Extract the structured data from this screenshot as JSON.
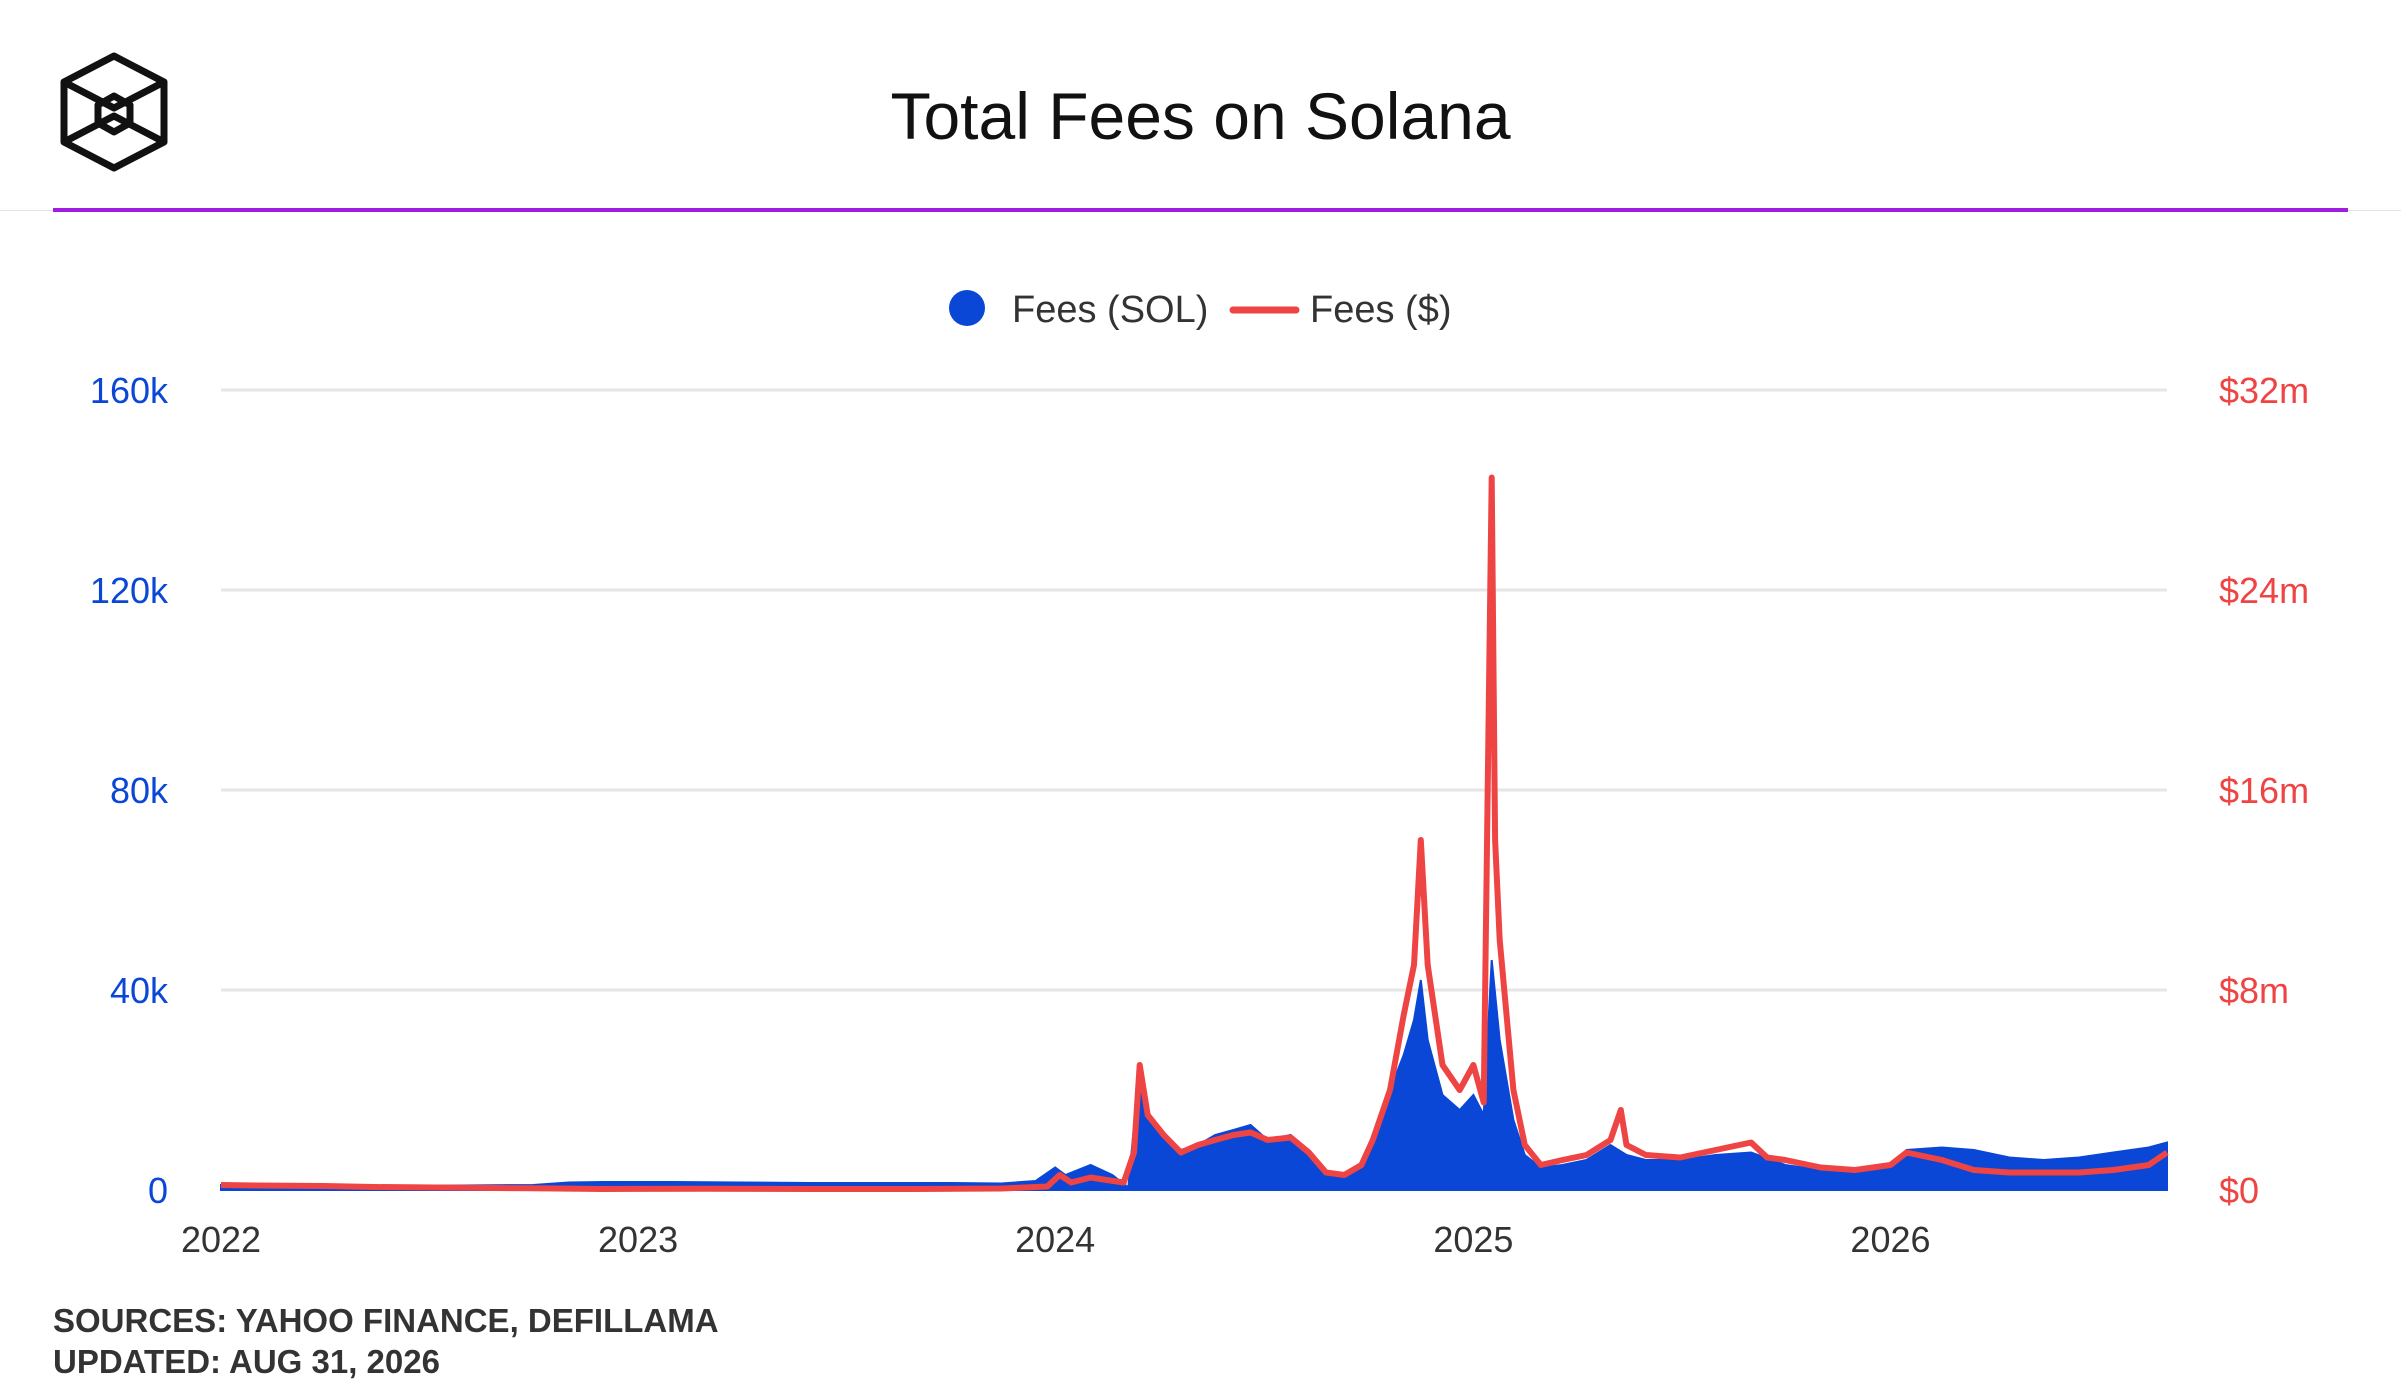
{
  "header": {
    "title": "Total Fees on Solana",
    "logo": "isometric-cube-logo",
    "divider_color": "#a01ee0"
  },
  "footer": {
    "sources": "SOURCES: YAHOO FINANCE, DEFILLAMA",
    "updated": "UPDATED: AUG 31, 2026"
  },
  "chart_data": {
    "type": "area",
    "title": "Total Fees on Solana",
    "x_ticks": [
      "2022",
      "2023",
      "2024",
      "2025",
      "2026"
    ],
    "x_range": [
      "2022-01-01",
      "2026-08-31"
    ],
    "grid": true,
    "legend_position": "top-center",
    "y_left": {
      "ticks": [
        "0",
        "40k",
        "80k",
        "120k",
        "160k"
      ],
      "range": [
        0,
        160000
      ],
      "color": "#0a47d6"
    },
    "y_right": {
      "ticks": [
        "$0",
        "$8m",
        "$16m",
        "$24m",
        "$32m"
      ],
      "range": [
        0,
        32000000
      ],
      "color": "#ef4444"
    },
    "series": [
      {
        "name": "Fees (SOL)",
        "mark": "area",
        "axis": "left",
        "color": "#0a47d6",
        "points": [
          [
            "2022-01-01",
            1000
          ],
          [
            "2022-02-01",
            1000
          ],
          [
            "2022-04-01",
            900
          ],
          [
            "2022-06-01",
            800
          ],
          [
            "2022-08-01",
            900
          ],
          [
            "2022-10-01",
            1000
          ],
          [
            "2022-11-01",
            1500
          ],
          [
            "2022-12-01",
            1600
          ],
          [
            "2023-02-01",
            1600
          ],
          [
            "2023-04-01",
            1500
          ],
          [
            "2023-06-01",
            1400
          ],
          [
            "2023-08-01",
            1400
          ],
          [
            "2023-10-01",
            1400
          ],
          [
            "2023-11-15",
            1300
          ],
          [
            "2023-12-15",
            1800
          ],
          [
            "2024-01-01",
            4500
          ],
          [
            "2024-01-10",
            3000
          ],
          [
            "2024-02-01",
            5000
          ],
          [
            "2024-02-20",
            3000
          ],
          [
            "2024-03-05",
            500
          ],
          [
            "2024-03-15",
            25000
          ],
          [
            "2024-03-22",
            14000
          ],
          [
            "2024-04-05",
            11000
          ],
          [
            "2024-04-20",
            8000
          ],
          [
            "2024-05-05",
            9000
          ],
          [
            "2024-05-20",
            11000
          ],
          [
            "2024-06-05",
            12000
          ],
          [
            "2024-06-20",
            13000
          ],
          [
            "2024-07-05",
            10000
          ],
          [
            "2024-07-25",
            11000
          ],
          [
            "2024-08-10",
            8000
          ],
          [
            "2024-08-25",
            3500
          ],
          [
            "2024-09-10",
            3000
          ],
          [
            "2024-09-25",
            5000
          ],
          [
            "2024-10-05",
            11000
          ],
          [
            "2024-10-20",
            20000
          ],
          [
            "2024-11-01",
            27000
          ],
          [
            "2024-11-10",
            34000
          ],
          [
            "2024-11-16",
            42000
          ],
          [
            "2024-11-22",
            30000
          ],
          [
            "2024-12-05",
            19000
          ],
          [
            "2024-12-20",
            16000
          ],
          [
            "2025-01-01",
            19000
          ],
          [
            "2025-01-10",
            15000
          ],
          [
            "2025-01-17",
            46000
          ],
          [
            "2025-01-24",
            30000
          ],
          [
            "2025-02-05",
            14000
          ],
          [
            "2025-02-15",
            7000
          ],
          [
            "2025-03-01",
            4500
          ],
          [
            "2025-03-20",
            5000
          ],
          [
            "2025-04-10",
            6000
          ],
          [
            "2025-05-01",
            9000
          ],
          [
            "2025-05-15",
            7000
          ],
          [
            "2025-06-01",
            6000
          ],
          [
            "2025-07-01",
            6000
          ],
          [
            "2025-08-01",
            7000
          ],
          [
            "2025-09-01",
            7500
          ],
          [
            "2025-10-01",
            5000
          ],
          [
            "2025-11-01",
            4000
          ],
          [
            "2025-12-01",
            4000
          ],
          [
            "2026-01-01",
            5000
          ],
          [
            "2026-01-15",
            8000
          ],
          [
            "2026-02-15",
            8500
          ],
          [
            "2026-03-15",
            8000
          ],
          [
            "2026-04-15",
            6500
          ],
          [
            "2026-05-15",
            6000
          ],
          [
            "2026-06-15",
            6500
          ],
          [
            "2026-07-15",
            7500
          ],
          [
            "2026-08-15",
            8500
          ],
          [
            "2026-08-31",
            9500
          ]
        ]
      },
      {
        "name": "Fees ($)",
        "mark": "line",
        "axis": "right",
        "color": "#ef4444",
        "points": [
          [
            "2022-01-01",
            200000
          ],
          [
            "2022-02-01",
            180000
          ],
          [
            "2022-04-01",
            160000
          ],
          [
            "2022-05-15",
            120000
          ],
          [
            "2022-08-01",
            90000
          ],
          [
            "2022-10-01",
            70000
          ],
          [
            "2022-12-01",
            40000
          ],
          [
            "2023-03-01",
            50000
          ],
          [
            "2023-06-01",
            40000
          ],
          [
            "2023-09-01",
            40000
          ],
          [
            "2023-11-15",
            60000
          ],
          [
            "2023-12-25",
            140000
          ],
          [
            "2024-01-05",
            600000
          ],
          [
            "2024-01-15",
            300000
          ],
          [
            "2024-02-01",
            500000
          ],
          [
            "2024-02-15",
            400000
          ],
          [
            "2024-03-01",
            300000
          ],
          [
            "2024-03-10",
            1500000
          ],
          [
            "2024-03-15",
            5000000
          ],
          [
            "2024-03-22",
            3000000
          ],
          [
            "2024-04-05",
            2200000
          ],
          [
            "2024-04-20",
            1500000
          ],
          [
            "2024-05-05",
            1800000
          ],
          [
            "2024-05-20",
            2000000
          ],
          [
            "2024-06-05",
            2200000
          ],
          [
            "2024-06-20",
            2300000
          ],
          [
            "2024-07-05",
            2000000
          ],
          [
            "2024-07-25",
            2100000
          ],
          [
            "2024-08-10",
            1500000
          ],
          [
            "2024-08-25",
            700000
          ],
          [
            "2024-09-10",
            600000
          ],
          [
            "2024-09-25",
            1000000
          ],
          [
            "2024-10-05",
            2000000
          ],
          [
            "2024-10-20",
            4000000
          ],
          [
            "2024-11-01",
            7000000
          ],
          [
            "2024-11-10",
            9000000
          ],
          [
            "2024-11-16",
            14000000
          ],
          [
            "2024-11-22",
            9000000
          ],
          [
            "2024-12-05",
            5000000
          ],
          [
            "2024-12-20",
            4000000
          ],
          [
            "2025-01-01",
            5000000
          ],
          [
            "2025-01-10",
            3500000
          ],
          [
            "2025-01-17",
            28500000
          ],
          [
            "2025-01-20",
            14000000
          ],
          [
            "2025-01-24",
            10000000
          ],
          [
            "2025-02-05",
            4000000
          ],
          [
            "2025-02-15",
            1800000
          ],
          [
            "2025-03-01",
            1000000
          ],
          [
            "2025-03-20",
            1200000
          ],
          [
            "2025-04-10",
            1400000
          ],
          [
            "2025-05-01",
            2000000
          ],
          [
            "2025-05-10",
            3200000
          ],
          [
            "2025-05-15",
            1800000
          ],
          [
            "2025-06-01",
            1400000
          ],
          [
            "2025-07-01",
            1300000
          ],
          [
            "2025-08-01",
            1600000
          ],
          [
            "2025-09-01",
            1900000
          ],
          [
            "2025-09-15",
            1300000
          ],
          [
            "2025-10-01",
            1200000
          ],
          [
            "2025-11-01",
            900000
          ],
          [
            "2025-12-01",
            800000
          ],
          [
            "2026-01-01",
            1000000
          ],
          [
            "2026-01-15",
            1500000
          ],
          [
            "2026-02-15",
            1200000
          ],
          [
            "2026-03-15",
            800000
          ],
          [
            "2026-04-15",
            700000
          ],
          [
            "2026-05-15",
            700000
          ],
          [
            "2026-06-15",
            700000
          ],
          [
            "2026-07-15",
            800000
          ],
          [
            "2026-08-15",
            1000000
          ],
          [
            "2026-08-31",
            1500000
          ]
        ]
      }
    ]
  }
}
